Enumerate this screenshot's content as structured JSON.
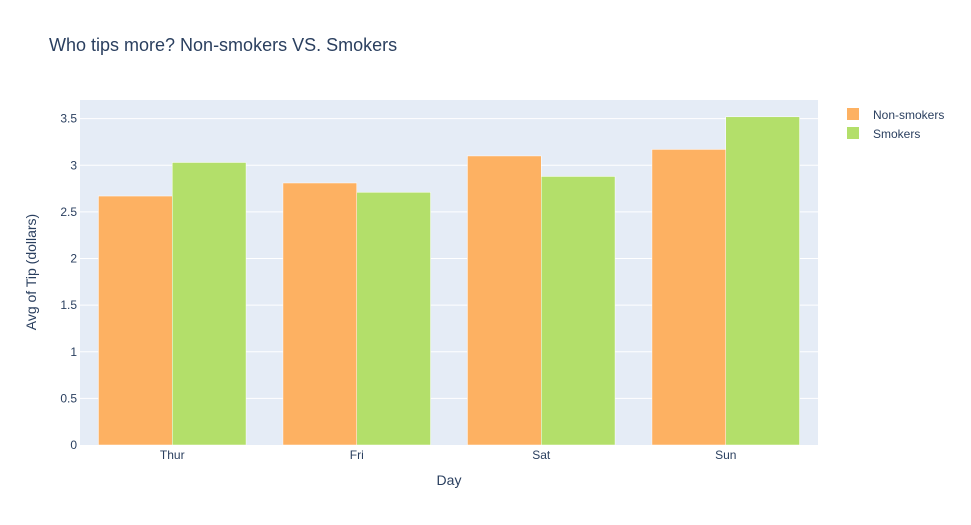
{
  "chart_data": {
    "type": "bar",
    "title": "Who tips more? Non-smokers VS. Smokers",
    "xlabel": "Day",
    "ylabel": "Avg of Tip (dollars)",
    "categories": [
      "Thur",
      "Fri",
      "Sat",
      "Sun"
    ],
    "ylim": [
      0,
      3.7
    ],
    "yticks": [
      0,
      0.5,
      1,
      1.5,
      2,
      2.5,
      3,
      3.5
    ],
    "ytick_labels": [
      "0",
      "0.5",
      "1",
      "1.5",
      "2",
      "2.5",
      "3",
      "3.5"
    ],
    "grid": true,
    "legend_position": "top-right",
    "plot_background": "#e5ecf6",
    "series": [
      {
        "name": "Non-smokers",
        "color": "#fdb162",
        "values": [
          2.67,
          2.81,
          3.1,
          3.17
        ]
      },
      {
        "name": "Smokers",
        "color": "#b3df6a",
        "values": [
          3.03,
          2.71,
          2.88,
          3.52
        ]
      }
    ]
  }
}
